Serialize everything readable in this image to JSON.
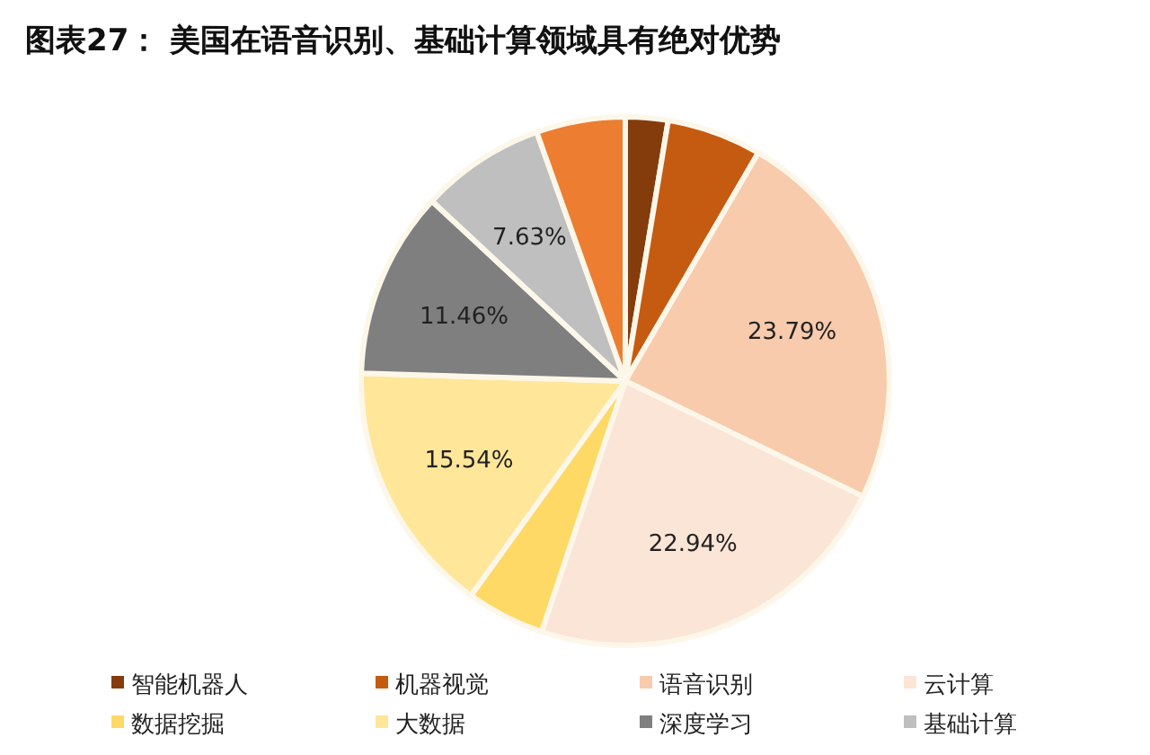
{
  "chart_data": {
    "type": "pie",
    "title": "图表27：  美国在语音识别、基础计算领域具有绝对优势",
    "categories": [
      "智能机器人",
      "机器视觉",
      "语音识别",
      "云计算",
      "数据挖掘",
      "大数据",
      "深度学习",
      "基础计算",
      null
    ],
    "values": [
      2.6,
      5.8,
      23.79,
      22.94,
      4.8,
      15.54,
      11.46,
      7.63,
      5.44
    ],
    "colors": [
      "#843c0c",
      "#c55a11",
      "#f8cbad",
      "#fbe5d6",
      "#ffd966",
      "#ffe699",
      "#7f7f7f",
      "#bfbfbf",
      "#ed7d31"
    ],
    "value_labels": [
      null,
      null,
      "23.79%",
      "22.94%",
      null,
      "15.54%",
      "11.46%",
      "7.63%",
      null
    ],
    "legend": "bottom"
  }
}
